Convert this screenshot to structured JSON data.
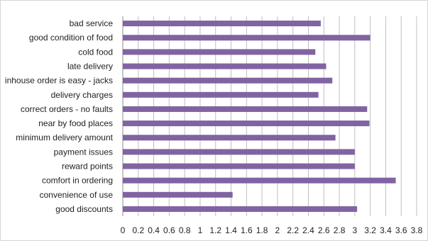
{
  "chart_data": {
    "type": "bar",
    "orientation": "horizontal",
    "categories": [
      "bad service",
      "good condition of food",
      "cold food",
      "late delivery",
      "inhouse order is easy - jacks",
      "delivery charges",
      "correct orders - no faults",
      "near by food places",
      "minimum delivery amount",
      "payment issues",
      "reward points",
      "comfort in ordering",
      "convenience of use",
      "good discounts"
    ],
    "values": [
      2.56,
      3.2,
      2.49,
      2.63,
      2.71,
      2.53,
      3.16,
      3.19,
      2.75,
      3.0,
      3.0,
      3.53,
      1.42,
      3.03
    ],
    "xlim": [
      0,
      3.8
    ],
    "xticks": [
      "0",
      "0.2",
      "0.4",
      "0.6",
      "0.8",
      "1",
      "1.2",
      "1.4",
      "1.6",
      "1.8",
      "2",
      "2.2",
      "2.4",
      "2.6",
      "2.8",
      "3",
      "3.2",
      "3.4",
      "3.6",
      "3.8"
    ],
    "title": "",
    "xlabel": "",
    "ylabel": "",
    "grid": "vertical",
    "legend": "none",
    "bar_color": "#8064a2",
    "grid_color": "#bfbfbf"
  }
}
